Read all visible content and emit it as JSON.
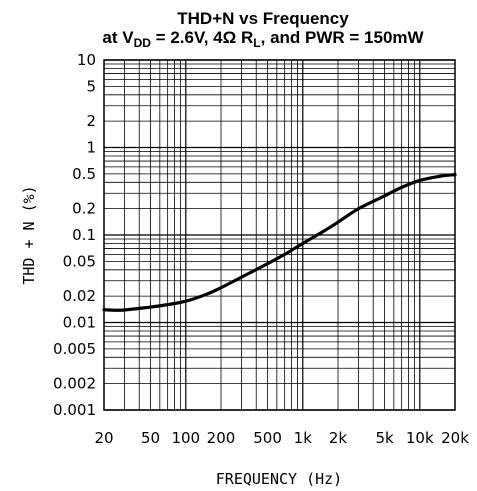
{
  "chart_data": {
    "type": "line",
    "title_line1": "THD+N vs Frequency",
    "title_line2": {
      "p1": "at V",
      "p1_sub": "DD",
      "p2": " = 2.6V, 4Ω R",
      "p2_sub": "L",
      "p3": ", and PWR = 150mW"
    },
    "xlabel": "FREQUENCY (Hz)",
    "ylabel": "THD + N (%)",
    "xscale": "log",
    "yscale": "log",
    "xlim": [
      20,
      20000
    ],
    "ylim": [
      0.001,
      10
    ],
    "grid": true,
    "x_ticks": [
      {
        "value": 20,
        "label": "20"
      },
      {
        "value": 50,
        "label": "50"
      },
      {
        "value": 100,
        "label": "100"
      },
      {
        "value": 200,
        "label": "200"
      },
      {
        "value": 500,
        "label": "500"
      },
      {
        "value": 1000,
        "label": "1k"
      },
      {
        "value": 2000,
        "label": "2k"
      },
      {
        "value": 5000,
        "label": "5k"
      },
      {
        "value": 10000,
        "label": "10k"
      },
      {
        "value": 20000,
        "label": "20k"
      }
    ],
    "y_ticks": [
      {
        "value": 10,
        "label": "10"
      },
      {
        "value": 5,
        "label": "5"
      },
      {
        "value": 2,
        "label": "2"
      },
      {
        "value": 1,
        "label": "1"
      },
      {
        "value": 0.5,
        "label": "0.5"
      },
      {
        "value": 0.2,
        "label": "0.2"
      },
      {
        "value": 0.1,
        "label": "0.1"
      },
      {
        "value": 0.05,
        "label": "0.05"
      },
      {
        "value": 0.02,
        "label": "0.02"
      },
      {
        "value": 0.01,
        "label": "0.01"
      },
      {
        "value": 0.005,
        "label": "0.005"
      },
      {
        "value": 0.002,
        "label": "0.002"
      },
      {
        "value": 0.001,
        "label": "0.001"
      }
    ],
    "series": [
      {
        "x": [
          20,
          25,
          30,
          40,
          50,
          70,
          100,
          150,
          200,
          300,
          500,
          700,
          1000,
          1500,
          2000,
          3000,
          5000,
          7000,
          10000,
          15000,
          20000
        ],
        "y": [
          0.014,
          0.0138,
          0.0139,
          0.0145,
          0.015,
          0.016,
          0.0175,
          0.021,
          0.025,
          0.033,
          0.047,
          0.06,
          0.08,
          0.11,
          0.14,
          0.2,
          0.28,
          0.35,
          0.42,
          0.47,
          0.49
        ]
      }
    ]
  }
}
